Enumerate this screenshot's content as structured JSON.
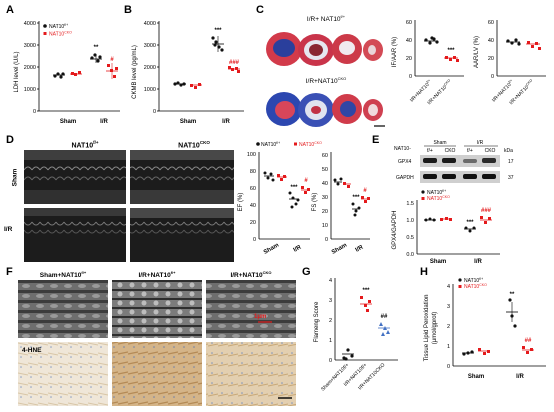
{
  "colors": {
    "fl": "#111111",
    "cko": "#e41a1c",
    "echo": "#1a1a1a"
  },
  "panels": {
    "A": "A",
    "B": "B",
    "C": "C",
    "D": "D",
    "E": "E",
    "F": "F",
    "G": "G",
    "H": "H"
  },
  "legend": {
    "fl": "NAT10",
    "fl_sup": "f/+",
    "cko": "NAT10",
    "cko_sup": "CKO"
  },
  "groups": {
    "sham": "Sham",
    "ir": "I/R"
  },
  "A": {
    "ylabel": "LDH level (U/L)",
    "yticks": [
      "0",
      "1000",
      "2000",
      "3000",
      "4000"
    ],
    "sig1": "**",
    "sig2": "#"
  },
  "B": {
    "ylabel": "CKMB level (pg/mL)",
    "yticks": [
      "0",
      "1000",
      "2000",
      "3000",
      "4000"
    ],
    "sig1": "***",
    "sig2": "###"
  },
  "C": {
    "title_top": "I/R+ NAT10",
    "title_top_sup": "f/+",
    "title_bot": "I/R+NAT10",
    "title_bot_sup": "CKO",
    "ylabel1": "IF/AAR (%)",
    "ylabel2": "AAR/LV (%)",
    "yticks1": [
      "0",
      "20",
      "40",
      "60"
    ],
    "yticks2": [
      "0",
      "20",
      "40",
      "60"
    ],
    "sig1": "***",
    "x1": "I/R+NAT10",
    "x1_sup": "f/+",
    "x2": "I/R+NAT10",
    "x2_sup": "CKO"
  },
  "D": {
    "col1": "NAT10",
    "col1_sup": "f/+",
    "col2": "NAT10",
    "col2_sup": "CKO",
    "row1": "Sham",
    "row2": "I/R",
    "ylabel1": "EF (%)",
    "ylabel2": "FS (%)",
    "yticks1": [
      "0",
      "20",
      "40",
      "60",
      "80",
      "100"
    ],
    "yticks2": [
      "0",
      "10",
      "20",
      "30",
      "40",
      "50",
      "60"
    ],
    "sig1": "***",
    "sig2": "#"
  },
  "E": {
    "prefix": "NAT10-",
    "top_sham": "Sham",
    "top_ir": "I/R",
    "cols": [
      "f/+",
      "CKO",
      "f/+",
      "CKO"
    ],
    "kda": "kDa",
    "band1": "GPX4",
    "band1_kda": "17",
    "band2": "GAPDH",
    "band2_kda": "37",
    "ylabel": "GPX4/GAPDH",
    "yticks": [
      "0.0",
      "0.5",
      "1.0",
      "1.5"
    ],
    "sig1": "***",
    "sig2": "###"
  },
  "F": {
    "col1": "Sham+NAT10",
    "col1_sup": "f/+",
    "col2": "I/R+NAT10",
    "col2_sup": "f/+",
    "col3": "I/R+NAT10",
    "col3_sup": "CKO",
    "stain": "4-HNE",
    "scale": "1μm"
  },
  "G": {
    "ylabel": "Flameng Score",
    "yticks": [
      "0",
      "1",
      "2",
      "3",
      "4"
    ],
    "sig1": "***",
    "sig2": "##",
    "xcats": [
      "Sham+NAT10f/+",
      "I/R+NAT10f/+",
      "I/R+NAT10CKO"
    ]
  },
  "H": {
    "ylabel": "Tissue Lipid Peroxidation",
    "ylabel2": "(μmol/gprot)",
    "yticks": [
      "0",
      "1",
      "2",
      "3",
      "4"
    ],
    "sig1": "**",
    "sig2": "##"
  },
  "chart_data": [
    {
      "type": "bar",
      "panel": "A",
      "ylabel": "LDH level (U/L)",
      "ylim": [
        0,
        4000
      ],
      "categories": [
        "Sham",
        "I/R"
      ],
      "series": [
        {
          "name": "NAT10f/+",
          "values": [
            1600,
            2350
          ]
        },
        {
          "name": "NAT10CKO",
          "values": [
            1680,
            1800
          ]
        }
      ]
    },
    {
      "type": "bar",
      "panel": "B",
      "ylabel": "CKMB level (pg/mL)",
      "ylim": [
        0,
        4000
      ],
      "categories": [
        "Sham",
        "I/R"
      ],
      "series": [
        {
          "name": "NAT10f/+",
          "values": [
            1250,
            3050
          ]
        },
        {
          "name": "NAT10CKO",
          "values": [
            1200,
            1900
          ]
        }
      ]
    },
    {
      "type": "bar",
      "panel": "C",
      "ylabel": "IF/AAR (%)",
      "ylim": [
        0,
        60
      ],
      "categories": [
        "I/R+NAT10f/+",
        "I/R+NAT10CKO"
      ],
      "values": [
        48,
        28
      ]
    },
    {
      "type": "bar",
      "panel": "C",
      "ylabel": "AAR/LV (%)",
      "ylim": [
        0,
        60
      ],
      "categories": [
        "I/R+NAT10f/+",
        "I/R+NAT10CKO"
      ],
      "values": [
        47,
        45
      ]
    },
    {
      "type": "bar",
      "panel": "D",
      "ylabel": "EF (%)",
      "ylim": [
        0,
        100
      ],
      "categories": [
        "Sham",
        "I/R"
      ],
      "series": [
        {
          "name": "NAT10f/+",
          "values": [
            73,
            47
          ]
        },
        {
          "name": "NAT10CKO",
          "values": [
            72,
            58
          ]
        }
      ]
    },
    {
      "type": "bar",
      "panel": "D",
      "ylabel": "FS (%)",
      "ylim": [
        0,
        60
      ],
      "categories": [
        "Sham",
        "I/R"
      ],
      "series": [
        {
          "name": "NAT10f/+",
          "values": [
            42,
            23
          ]
        },
        {
          "name": "NAT10CKO",
          "values": [
            40,
            30
          ]
        }
      ]
    },
    {
      "type": "bar",
      "panel": "E",
      "ylabel": "GPX4/GAPDH",
      "ylim": [
        0,
        1.5
      ],
      "categories": [
        "Sham",
        "I/R"
      ],
      "series": [
        {
          "name": "NAT10f/+",
          "values": [
            1.0,
            0.72
          ]
        },
        {
          "name": "NAT10CKO",
          "values": [
            1.02,
            0.98
          ]
        }
      ]
    },
    {
      "type": "bar",
      "panel": "G",
      "ylabel": "Flameng Score",
      "ylim": [
        0,
        4
      ],
      "categories": [
        "Sham+NAT10f/+",
        "I/R+NAT10f/+",
        "I/R+NAT10CKO"
      ],
      "values": [
        0.3,
        2.8,
        1.6
      ]
    },
    {
      "type": "bar",
      "panel": "H",
      "ylabel": "Tissue Lipid Peroxidation (μmol/gprot)",
      "ylim": [
        0,
        4
      ],
      "categories": [
        "Sham",
        "I/R"
      ],
      "series": [
        {
          "name": "NAT10f/+",
          "values": [
            0.65,
            2.7
          ]
        },
        {
          "name": "NAT10CKO",
          "values": [
            0.75,
            0.8
          ]
        }
      ]
    }
  ]
}
